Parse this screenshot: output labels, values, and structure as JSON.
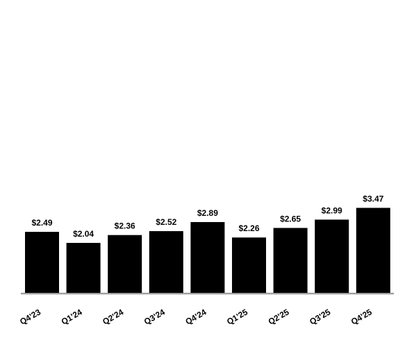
{
  "chart_data": {
    "type": "bar",
    "categories": [
      "Q4'23",
      "Q1'24",
      "Q2'24",
      "Q3'24",
      "Q4'24",
      "Q1'25",
      "Q2'25",
      "Q3'25",
      "Q4'25"
    ],
    "values": [
      2.49,
      2.04,
      2.36,
      2.52,
      2.89,
      2.26,
      2.65,
      2.99,
      3.47
    ],
    "value_labels": [
      "$2.49",
      "$2.04",
      "$2.36",
      "$2.52",
      "$2.89",
      "$2.26",
      "$2.65",
      "$2.99",
      "$3.47"
    ],
    "color": "#000000"
  }
}
